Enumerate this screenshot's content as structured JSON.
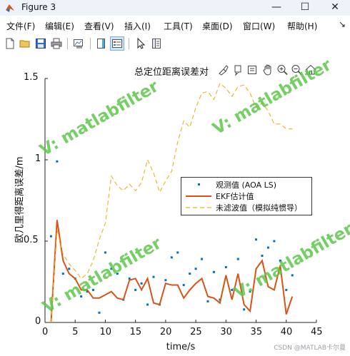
{
  "window": {
    "title": "Figure 3",
    "minimize": "—",
    "maximize": "☐",
    "close": "✕"
  },
  "menu": {
    "items": [
      "文件(F)",
      "编辑(E)",
      "查看(V)",
      "插入(I)",
      "工具(T)",
      "桌面(D)",
      "窗口(W)",
      "帮助(H)"
    ],
    "more": "↘"
  },
  "toolbar": {
    "icons": [
      "new-figure-icon",
      "open-file-icon",
      "save-icon",
      "print-icon",
      "link-plot-icon",
      "insert-colorbar-icon",
      "insert-legend-icon",
      "edit-plot-pointer-icon",
      "property-inspector-icon"
    ]
  },
  "axes_toolbar": {
    "icons": [
      "brush-icon",
      "data-tips-icon",
      "axes-menu-icon",
      "pan-hand-icon",
      "zoom-in-icon",
      "zoom-out-icon",
      "home-restore-icon"
    ]
  },
  "watermark": "V: matlabfilter",
  "credit": "CSDN @MATLAB卡尔曼",
  "chart_data": {
    "type": "line",
    "title": "总定位距离误差对",
    "xlabel": "time/s",
    "ylabel": "欧几里得距离误差/m",
    "xlim": [
      0,
      45
    ],
    "ylim": [
      0,
      1.5
    ],
    "xticks": [
      0,
      5,
      10,
      15,
      20,
      25,
      30,
      35,
      40,
      45
    ],
    "yticks": [
      0,
      0.5,
      1,
      1.5
    ],
    "ytick_labels": [
      "0",
      "0.5",
      "1",
      "1.5"
    ],
    "grid": false,
    "legend_position": "right",
    "series": [
      {
        "name": "观测值 (AOA LS)",
        "style": "points",
        "color": "#0072bd",
        "x": [
          1,
          2,
          3,
          4,
          5,
          6,
          7,
          8,
          9,
          10,
          11,
          12,
          13,
          14,
          15,
          16,
          17,
          18,
          19,
          20,
          21,
          22,
          23,
          24,
          25,
          26,
          27,
          28,
          29,
          30,
          31,
          32,
          33,
          34,
          35,
          36,
          37,
          38,
          39,
          40,
          41
        ],
        "y": [
          0.53,
          0.99,
          0.3,
          0.33,
          0.27,
          0.16,
          0.19,
          0.2,
          0.06,
          0.43,
          0.33,
          0.3,
          0.14,
          0.27,
          0.2,
          0.24,
          0.11,
          0.28,
          0.11,
          0.26,
          0.4,
          0.43,
          0.23,
          0.3,
          0.33,
          0.39,
          0.13,
          0.31,
          0.14,
          0.34,
          0.2,
          0.39,
          0.08,
          0.19,
          0.51,
          0.41,
          0.46,
          0.5,
          0.38,
          0.2,
          0.29
        ]
      },
      {
        "name": "EKF估计值",
        "style": "solid",
        "color": "#d95319",
        "x": [
          1,
          2,
          3,
          4,
          5,
          6,
          7,
          8,
          9,
          10,
          11,
          12,
          13,
          14,
          15,
          16,
          17,
          18,
          19,
          20,
          21,
          22,
          23,
          24,
          25,
          26,
          27,
          28,
          29,
          30,
          31,
          32,
          33,
          34,
          35,
          36,
          37,
          38,
          39,
          40,
          41
        ],
        "y": [
          0.0,
          0.63,
          0.38,
          0.3,
          0.27,
          0.2,
          0.2,
          0.15,
          0.15,
          0.17,
          0.19,
          0.15,
          0.14,
          0.26,
          0.27,
          0.2,
          0.27,
          0.12,
          0.11,
          0.24,
          0.23,
          0.23,
          0.15,
          0.2,
          0.24,
          0.27,
          0.16,
          0.15,
          0.12,
          0.29,
          0.14,
          0.3,
          0.11,
          0.07,
          0.33,
          0.38,
          0.22,
          0.2,
          0.35,
          0.05,
          0.16
        ]
      },
      {
        "name": "未滤波值（模拟纯惯导）",
        "style": "dashed",
        "color": "#edb120",
        "x": [
          1,
          2,
          3,
          4,
          5,
          6,
          7,
          8,
          9,
          10,
          11,
          12,
          13,
          14,
          15,
          16,
          17,
          18,
          19,
          20,
          21,
          22,
          23,
          24,
          25,
          26,
          27,
          28,
          29,
          30,
          31,
          32,
          33,
          34,
          35,
          36,
          37,
          38,
          39,
          40,
          41
        ],
        "y": [
          0.0,
          0.57,
          0.42,
          0.36,
          0.32,
          0.27,
          0.3,
          0.38,
          0.51,
          0.61,
          0.9,
          0.84,
          0.81,
          0.85,
          0.81,
          0.86,
          1.0,
          0.92,
          0.8,
          0.87,
          0.93,
          1.11,
          1.24,
          1.2,
          1.32,
          1.41,
          1.42,
          1.37,
          1.47,
          1.44,
          1.39,
          1.45,
          1.46,
          1.41,
          1.32,
          1.35,
          1.3,
          1.22,
          1.22,
          1.19,
          1.19
        ]
      }
    ]
  }
}
